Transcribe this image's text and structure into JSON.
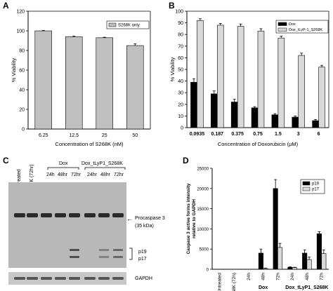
{
  "panels": {
    "A": "A",
    "B": "B",
    "C": "C",
    "D": "D"
  },
  "colors": {
    "bar_gray": "#c0c0c0",
    "bar_black": "#000000",
    "bar_light": "#d9d9d9",
    "blot_bg": "#b8b8b8",
    "band": "#2a2a2a"
  },
  "chart_data": [
    {
      "panel": "A",
      "type": "bar",
      "categories": [
        "6.25",
        "12.5",
        "25",
        "50"
      ],
      "series": [
        {
          "name": "S268K only",
          "values": [
            100,
            94,
            93,
            85
          ],
          "errors": [
            0.5,
            0.7,
            0.5,
            1.8
          ]
        }
      ],
      "xlabel": "Concentration of S268K  (nM)",
      "ylabel": "% Viability",
      "ylim": [
        0,
        120
      ],
      "yticks": [
        0,
        20,
        40,
        60,
        80,
        100,
        120
      ],
      "legend": "top-right",
      "grid": false
    },
    {
      "panel": "B",
      "type": "bar",
      "categories": [
        "0.0935",
        "0.187",
        "0.375",
        "0.75",
        "1.5",
        "3",
        "6"
      ],
      "series": [
        {
          "name": "Dox",
          "values": [
            39,
            29,
            22,
            17,
            11,
            9,
            6
          ],
          "errors": [
            3,
            2.5,
            2.5,
            1,
            1,
            1,
            1
          ]
        },
        {
          "name": "Dox_tLyP-1_S268K",
          "values": [
            92,
            88,
            87,
            83,
            77,
            62,
            52
          ],
          "errors": [
            1.5,
            1.5,
            2,
            2,
            1.5,
            2,
            1.5
          ]
        }
      ],
      "xlabel": "Concentration of Doxorubicin (μM)",
      "ylabel": "% Viability",
      "ylim": [
        0,
        100
      ],
      "yticks": [
        0,
        10,
        20,
        30,
        40,
        50,
        60,
        70,
        80,
        90,
        100
      ],
      "legend": "top-right",
      "grid": false
    },
    {
      "panel": "D",
      "type": "bar",
      "categories": [
        "Untreated",
        "S268K (72h)",
        "24h",
        "48h",
        "72h",
        "24h",
        "48h",
        "72h"
      ],
      "group_labels": [
        "Dox",
        "Dox_tLyP1_S268K"
      ],
      "series": [
        {
          "name": "p19",
          "values": [
            0,
            0,
            0,
            4000,
            20000,
            500,
            4000,
            8800
          ],
          "errors": [
            0,
            0,
            0,
            1000,
            2200,
            100,
            800,
            500
          ]
        },
        {
          "name": "p17",
          "values": [
            0,
            0,
            0,
            200,
            5400,
            400,
            2400,
            3900
          ],
          "errors": [
            0,
            0,
            0,
            100,
            1000,
            100,
            600,
            900
          ]
        }
      ],
      "ylabel": "Caspase 3 active forms intensity\nrelative to GAPDH",
      "ylim": [
        0,
        25000
      ],
      "yticks": [
        0,
        5000,
        10000,
        15000,
        20000,
        25000
      ],
      "legend": "top-right",
      "grid": false
    }
  ],
  "blot": {
    "lanes": [
      "Untreated",
      "S268K (72hr)",
      "24h",
      "48hr",
      "72hr",
      "24hr",
      "48hr",
      "72hr"
    ],
    "groups": [
      "Dox",
      "Dox_tLyP1_S268K"
    ],
    "procaspase_label": "Procaspase 3",
    "procaspase_kda": "(35 kDa)",
    "p19": "p19",
    "p17": "p17",
    "gapdh": "GAPDH",
    "arrow": "←"
  }
}
